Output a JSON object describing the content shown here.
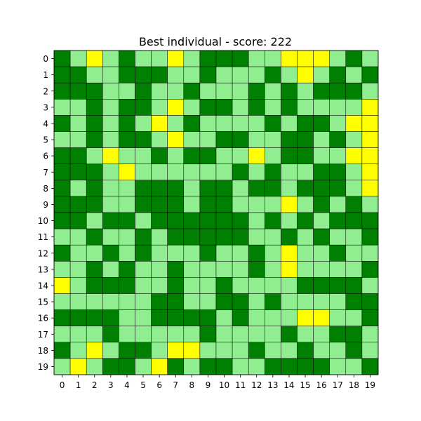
{
  "chart_data": {
    "type": "heatmap",
    "title": "Best individual - score: 222",
    "xlabel": "",
    "ylabel": "",
    "x_ticks": [
      "0",
      "1",
      "2",
      "3",
      "4",
      "5",
      "6",
      "7",
      "8",
      "9",
      "10",
      "11",
      "12",
      "13",
      "14",
      "15",
      "16",
      "17",
      "18",
      "19"
    ],
    "y_ticks": [
      "0",
      "1",
      "2",
      "3",
      "4",
      "5",
      "6",
      "7",
      "8",
      "9",
      "10",
      "11",
      "12",
      "13",
      "14",
      "15",
      "16",
      "17",
      "18",
      "19"
    ],
    "palette": {
      "0": "#008000",
      "1": "#90ee90",
      "2": "#ffff00"
    },
    "grid": [
      [
        0,
        1,
        2,
        1,
        0,
        1,
        1,
        2,
        1,
        0,
        0,
        0,
        1,
        1,
        2,
        2,
        2,
        1,
        0,
        1
      ],
      [
        0,
        0,
        1,
        1,
        0,
        0,
        0,
        1,
        1,
        0,
        1,
        1,
        1,
        0,
        1,
        2,
        1,
        0,
        1,
        0
      ],
      [
        0,
        0,
        0,
        1,
        1,
        0,
        1,
        1,
        0,
        1,
        1,
        1,
        0,
        1,
        0,
        1,
        0,
        0,
        0,
        1
      ],
      [
        1,
        1,
        0,
        1,
        0,
        0,
        1,
        2,
        1,
        0,
        0,
        1,
        0,
        1,
        0,
        1,
        1,
        1,
        1,
        2
      ],
      [
        0,
        1,
        0,
        1,
        0,
        1,
        2,
        1,
        0,
        1,
        1,
        1,
        1,
        0,
        1,
        0,
        0,
        1,
        2,
        2
      ],
      [
        1,
        1,
        0,
        1,
        0,
        0,
        1,
        2,
        1,
        1,
        0,
        0,
        1,
        1,
        0,
        0,
        1,
        0,
        1,
        2
      ],
      [
        0,
        0,
        1,
        2,
        1,
        1,
        0,
        1,
        0,
        0,
        1,
        1,
        2,
        1,
        0,
        0,
        1,
        1,
        2,
        2
      ],
      [
        0,
        0,
        0,
        1,
        2,
        1,
        1,
        1,
        1,
        1,
        1,
        0,
        1,
        0,
        1,
        1,
        0,
        0,
        1,
        2
      ],
      [
        0,
        1,
        0,
        1,
        1,
        0,
        0,
        0,
        1,
        0,
        0,
        1,
        0,
        0,
        1,
        0,
        0,
        0,
        1,
        2
      ],
      [
        0,
        0,
        0,
        1,
        1,
        0,
        0,
        0,
        1,
        0,
        0,
        1,
        1,
        1,
        2,
        1,
        0,
        1,
        0,
        1
      ],
      [
        0,
        0,
        1,
        0,
        0,
        1,
        0,
        0,
        0,
        0,
        0,
        0,
        1,
        0,
        1,
        0,
        1,
        0,
        0,
        0
      ],
      [
        1,
        1,
        0,
        1,
        1,
        0,
        1,
        0,
        0,
        0,
        0,
        0,
        1,
        1,
        0,
        1,
        0,
        1,
        1,
        0
      ],
      [
        0,
        1,
        1,
        0,
        1,
        0,
        1,
        1,
        1,
        0,
        1,
        1,
        0,
        1,
        2,
        1,
        1,
        0,
        1,
        1
      ],
      [
        1,
        1,
        0,
        1,
        0,
        1,
        1,
        0,
        1,
        1,
        1,
        1,
        0,
        1,
        2,
        1,
        1,
        1,
        1,
        0
      ],
      [
        2,
        1,
        0,
        0,
        0,
        1,
        1,
        0,
        1,
        1,
        0,
        1,
        1,
        1,
        1,
        0,
        0,
        0,
        0,
        1
      ],
      [
        1,
        1,
        1,
        1,
        1,
        1,
        0,
        0,
        1,
        1,
        0,
        0,
        1,
        0,
        1,
        1,
        1,
        1,
        0,
        0
      ],
      [
        0,
        0,
        0,
        0,
        1,
        1,
        0,
        0,
        0,
        0,
        1,
        0,
        1,
        1,
        1,
        2,
        2,
        1,
        1,
        0
      ],
      [
        1,
        1,
        1,
        0,
        1,
        1,
        1,
        1,
        1,
        0,
        1,
        1,
        1,
        1,
        0,
        1,
        1,
        0,
        0,
        1
      ],
      [
        0,
        1,
        2,
        1,
        0,
        0,
        1,
        2,
        2,
        1,
        1,
        1,
        0,
        1,
        1,
        0,
        1,
        1,
        0,
        1
      ],
      [
        1,
        2,
        1,
        0,
        0,
        1,
        2,
        0,
        1,
        0,
        0,
        1,
        1,
        0,
        0,
        0,
        0,
        1,
        1,
        0
      ]
    ]
  }
}
